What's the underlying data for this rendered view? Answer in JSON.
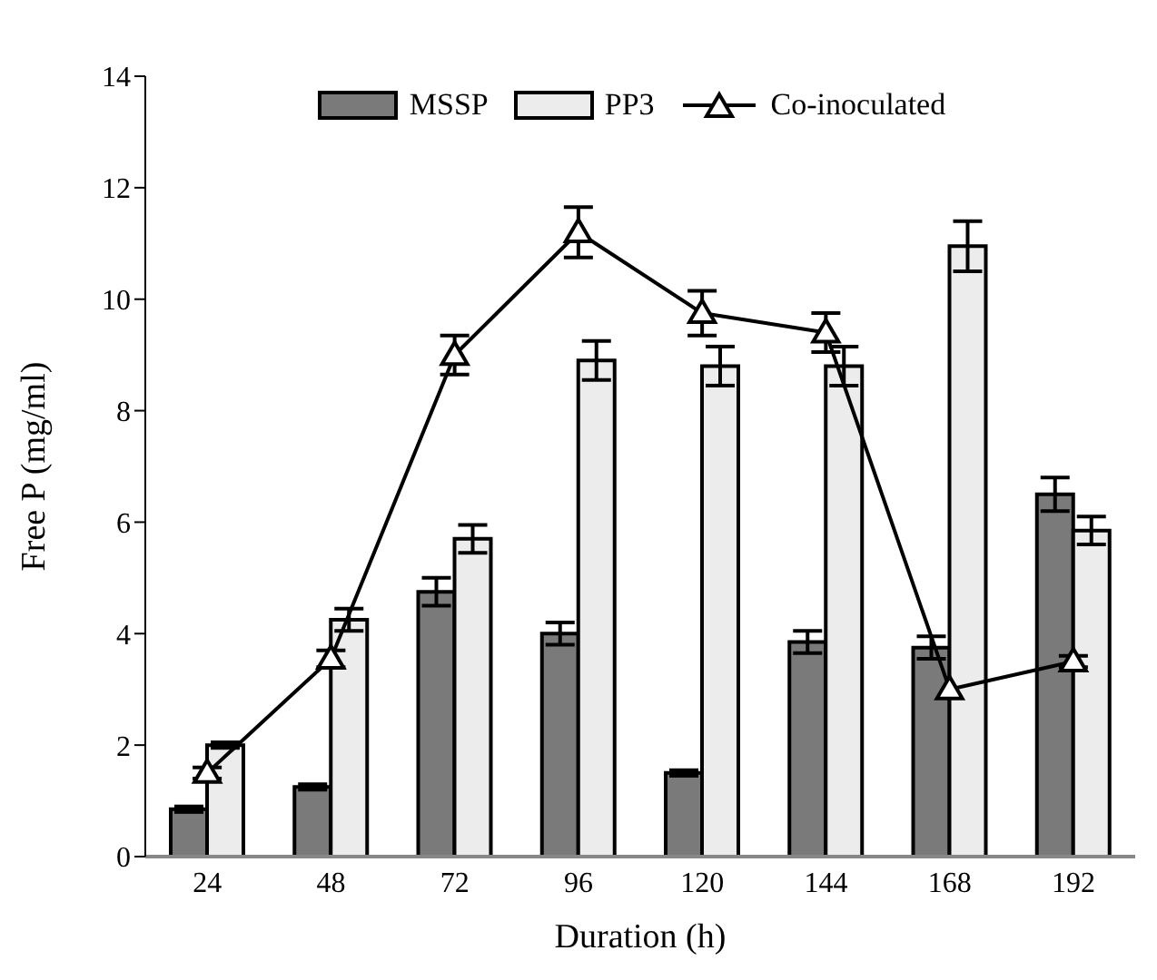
{
  "chart_data": {
    "type": "bar",
    "xlabel": "Duration (h)",
    "ylabel": "Free P (mg/ml)",
    "categories": [
      "24",
      "48",
      "72",
      "96",
      "120",
      "144",
      "168",
      "192"
    ],
    "series": [
      {
        "name": "MSSP",
        "color": "#7a7a7a",
        "values": [
          0.85,
          1.25,
          4.75,
          4.0,
          1.5,
          3.85,
          3.75,
          6.5
        ],
        "errors": [
          0.05,
          0.05,
          0.25,
          0.2,
          0.05,
          0.2,
          0.2,
          0.3
        ]
      },
      {
        "name": "PP3",
        "color": "#ececec",
        "values": [
          2.0,
          4.25,
          5.7,
          8.9,
          8.8,
          8.8,
          10.95,
          5.85
        ],
        "errors": [
          0.05,
          0.2,
          0.25,
          0.35,
          0.35,
          0.35,
          0.45,
          0.25
        ]
      },
      {
        "name": "Co-inoculated",
        "type": "line",
        "color": "#000000",
        "marker": "triangle",
        "values": [
          1.5,
          3.55,
          9.0,
          11.2,
          9.75,
          9.4,
          3.0,
          3.5
        ],
        "errors": [
          0.1,
          0.15,
          0.35,
          0.45,
          0.4,
          0.35,
          null,
          0.1
        ]
      }
    ],
    "ylim": [
      0,
      14
    ],
    "yticks": [
      0,
      2,
      4,
      6,
      8,
      10,
      12,
      14
    ],
    "grid": false,
    "legend": "top"
  }
}
